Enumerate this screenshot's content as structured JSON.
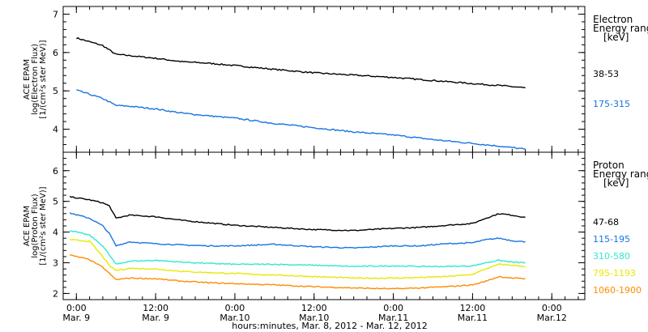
{
  "chart_data": {
    "type": "line",
    "xlabel": "hours:minutes, Mar. 8, 2012 - Mar. 12, 2012",
    "x_ticks": [
      {
        "time": "0:00",
        "date": "Mar. 9",
        "hour": 0
      },
      {
        "time": "12:00",
        "date": "Mar. 9",
        "hour": 12
      },
      {
        "time": "0:00",
        "date": "Mar.10",
        "hour": 24
      },
      {
        "time": "12:00",
        "date": "Mar.10",
        "hour": 36
      },
      {
        "time": "0:00",
        "date": "Mar.11",
        "hour": 48
      },
      {
        "time": "12:00",
        "date": "Mar.11",
        "hour": 60
      },
      {
        "time": "0:00",
        "date": "Mar.12",
        "hour": 72
      }
    ],
    "xlim": [
      -2,
      77
    ],
    "panels": [
      {
        "name": "electron",
        "ylabel_lines": [
          "ACE EPAM",
          "log(Electron Flux)",
          "[1/(cm²s ster MeV)]"
        ],
        "ylim": [
          3.4,
          7.2
        ],
        "yticks": [
          4,
          5,
          6,
          7
        ],
        "legend_title": [
          "Electron",
          "Energy ranges",
          "[keV]"
        ],
        "series": [
          {
            "name": "38-53",
            "color": "#000000",
            "x": [
              0,
              4,
              6,
              8,
              12,
              16,
              20,
              24,
              30,
              36,
              42,
              48,
              54,
              60,
              64,
              68
            ],
            "y": [
              6.38,
              6.18,
              5.95,
              5.92,
              5.85,
              5.76,
              5.72,
              5.66,
              5.56,
              5.47,
              5.41,
              5.35,
              5.27,
              5.19,
              5.14,
              5.08
            ]
          },
          {
            "name": "175-315",
            "color": "#1874e0",
            "x": [
              0,
              4,
              6,
              8,
              12,
              16,
              20,
              24,
              30,
              36,
              42,
              48,
              54,
              60,
              64,
              68
            ],
            "y": [
              5.02,
              4.8,
              4.62,
              4.6,
              4.53,
              4.42,
              4.35,
              4.29,
              4.15,
              4.04,
              3.93,
              3.85,
              3.73,
              3.63,
              3.56,
              3.48
            ]
          }
        ]
      },
      {
        "name": "proton",
        "ylabel_lines": [
          "ACE EPAM",
          "log(Proton Flux)",
          "[1/(cm²s ster MeV)]"
        ],
        "ylim": [
          1.8,
          6.6
        ],
        "yticks": [
          2,
          3,
          4,
          5,
          6
        ],
        "legend_title": [
          "Proton",
          "Energy ranges",
          "[keV]"
        ],
        "series": [
          {
            "name": "47-68",
            "color": "#000000",
            "x": [
              -1,
              2,
              4,
              5,
              6,
              8,
              12,
              16,
              20,
              24,
              30,
              36,
              42,
              48,
              52,
              56,
              60,
              62,
              64,
              66,
              68
            ],
            "y": [
              5.15,
              5.05,
              4.95,
              4.85,
              4.45,
              4.55,
              4.5,
              4.38,
              4.3,
              4.22,
              4.15,
              4.08,
              4.05,
              4.12,
              4.15,
              4.22,
              4.28,
              4.45,
              4.6,
              4.55,
              4.48
            ]
          },
          {
            "name": "115-195",
            "color": "#1874e0",
            "x": [
              -1,
              2,
              4,
              5,
              6,
              8,
              12,
              16,
              20,
              24,
              30,
              36,
              42,
              48,
              52,
              56,
              60,
              62,
              64,
              66,
              68
            ],
            "y": [
              4.62,
              4.45,
              4.2,
              3.95,
              3.55,
              3.68,
              3.62,
              3.58,
              3.55,
              3.55,
              3.6,
              3.52,
              3.48,
              3.55,
              3.55,
              3.62,
              3.65,
              3.75,
              3.8,
              3.72,
              3.68
            ]
          },
          {
            "name": "310-580",
            "color": "#30e8d0",
            "x": [
              -1,
              2,
              4,
              5,
              6,
              8,
              12,
              16,
              20,
              24,
              30,
              36,
              42,
              48,
              52,
              56,
              60,
              62,
              64,
              66,
              68
            ],
            "y": [
              4.05,
              3.9,
              3.55,
              3.25,
              2.95,
              3.05,
              3.08,
              3.02,
              2.98,
              2.95,
              2.95,
              2.92,
              2.88,
              2.9,
              2.88,
              2.88,
              2.9,
              3.0,
              3.08,
              3.02,
              3.0
            ]
          },
          {
            "name": "795-1193",
            "color": "#e8e800",
            "x": [
              -1,
              2,
              4,
              5,
              6,
              8,
              12,
              16,
              20,
              24,
              30,
              36,
              42,
              48,
              52,
              56,
              60,
              62,
              64,
              66,
              68
            ],
            "y": [
              3.75,
              3.7,
              3.2,
              2.9,
              2.75,
              2.82,
              2.8,
              2.72,
              2.68,
              2.65,
              2.6,
              2.55,
              2.5,
              2.5,
              2.52,
              2.55,
              2.62,
              2.8,
              2.95,
              2.92,
              2.88
            ]
          },
          {
            "name": "1060-1900",
            "color": "#ff8c00",
            "x": [
              -1,
              2,
              4,
              5,
              6,
              8,
              12,
              16,
              20,
              24,
              30,
              36,
              42,
              48,
              52,
              56,
              60,
              62,
              64,
              66,
              68
            ],
            "y": [
              3.25,
              3.1,
              2.85,
              2.65,
              2.45,
              2.5,
              2.48,
              2.4,
              2.35,
              2.32,
              2.28,
              2.22,
              2.18,
              2.15,
              2.18,
              2.22,
              2.28,
              2.4,
              2.55,
              2.5,
              2.48
            ]
          }
        ]
      }
    ]
  }
}
